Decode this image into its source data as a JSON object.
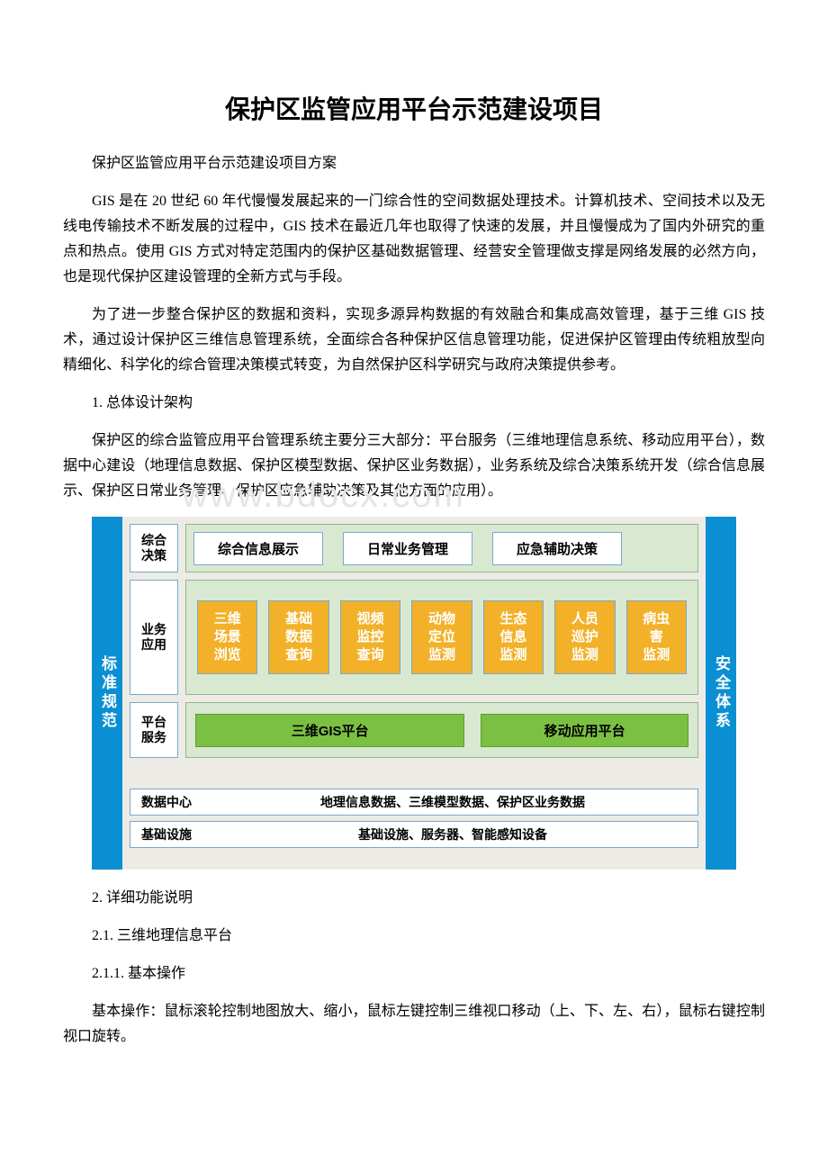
{
  "title": "保护区监管应用平台示范建设项目",
  "paragraphs": {
    "p1": "保护区监管应用平台示范建设项目方案",
    "p2": "GIS 是在 20 世纪 60 年代慢慢发展起来的一门综合性的空间数据处理技术。计算机技术、空间技术以及无线电传输技术不断发展的过程中，GIS 技术在最近几年也取得了快速的发展，并且慢慢成为了国内外研究的重点和热点。使用 GIS 方式对特定范围内的保护区基础数据管理、经营安全管理做支撑是网络发展的必然方向，也是现代保护区建设管理的全新方式与手段。",
    "p3": "为了进一步整合保护区的数据和资料，实现多源异构数据的有效融合和集成高效管理，基于三维 GIS 技术，通过设计保护区三维信息管理系统，全面综合各种保护区信息管理功能，促进保护区管理由传统粗放型向精细化、科学化的综合管理决策模式转变，为自然保护区科学研究与政府决策提供参考。",
    "h1": "1. 总体设计架构",
    "p4": "保护区的综合监管应用平台管理系统主要分三大部分：平台服务（三维地理信息系统、移动应用平台），数据中心建设（地理信息数据、保护区模型数据、保护区业务数据），业务系统及综合决策系统开发（综合信息展示、保护区日常业务管理、保护区应急辅助决策及其他方面的应用）。",
    "h2": "2. 详细功能说明",
    "h21": "2.1. 三维地理信息平台",
    "h211": "2.1.1. 基本操作",
    "p5": "基本操作：鼠标滚轮控制地图放大、缩小，鼠标左键控制三维视口移动（上、下、左、右），鼠标右键控制视口旋转。"
  },
  "watermark": "www.bdocx.com",
  "diagram": {
    "left_pillar": "标准规范",
    "right_pillar": "安全体系",
    "row1": {
      "label": "综合\n决策",
      "items": [
        "综合信息展示",
        "日常业务管理",
        "应急辅助决策"
      ]
    },
    "row2": {
      "label": "业务\n应用",
      "items": [
        "三维\n场景\n浏览",
        "基础\n数据\n查询",
        "视频\n监控\n查询",
        "动物\n定位\n监测",
        "生态\n信息\n监测",
        "人员\n巡护\n监测",
        "病虫\n害\n监测"
      ]
    },
    "row3": {
      "label": "平台\n服务",
      "items": [
        "三维GIS平台",
        "移动应用平台"
      ]
    },
    "bar1": {
      "label": "数据中心",
      "text": "地理信息数据、三维模型数据、保护区业务数据"
    },
    "bar2": {
      "label": "基础设施",
      "text": "基础设施、服务器、智能感知设备"
    },
    "colors": {
      "pillar_bg": "#0b8fd3",
      "layer_bg": "#d9e9d1",
      "orange": "#f2b128",
      "green": "#7cc043",
      "panel_bg": "#ecebe6",
      "border": "#7aa8c9"
    }
  }
}
